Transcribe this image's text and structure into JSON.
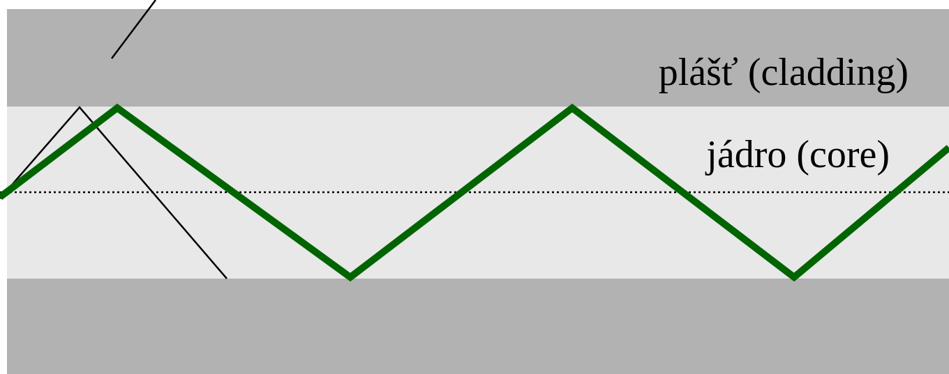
{
  "labels": {
    "cladding": "plášť (cladding)",
    "core": "jádro (core)"
  },
  "colors": {
    "background": "#ffffff",
    "cladding": "#b2b2b2",
    "core": "#e8e8e8",
    "guided_ray": "#006400",
    "refracted_ray": "#000000",
    "axis": "#000000",
    "text": "#000000"
  }
}
